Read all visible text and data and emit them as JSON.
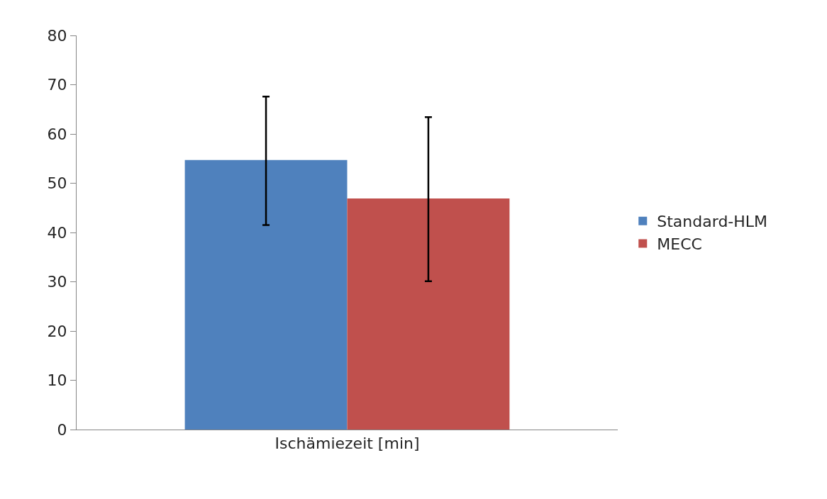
{
  "chart_data": {
    "type": "bar",
    "categories": [
      "Ischämiezeit [min]"
    ],
    "series": [
      {
        "name": "Standard-HLM",
        "color": "#4f81bd",
        "values": [
          54.7
        ],
        "errors": [
          [
            41.5,
            67.6
          ]
        ]
      },
      {
        "name": "MECC",
        "color": "#c0504d",
        "values": [
          46.9
        ],
        "errors": [
          [
            30.1,
            63.4
          ]
        ]
      }
    ],
    "ylim": [
      0,
      80
    ],
    "yticks": [
      0,
      10,
      20,
      30,
      40,
      50,
      60,
      70,
      80
    ],
    "grid": false,
    "legend": "right"
  }
}
